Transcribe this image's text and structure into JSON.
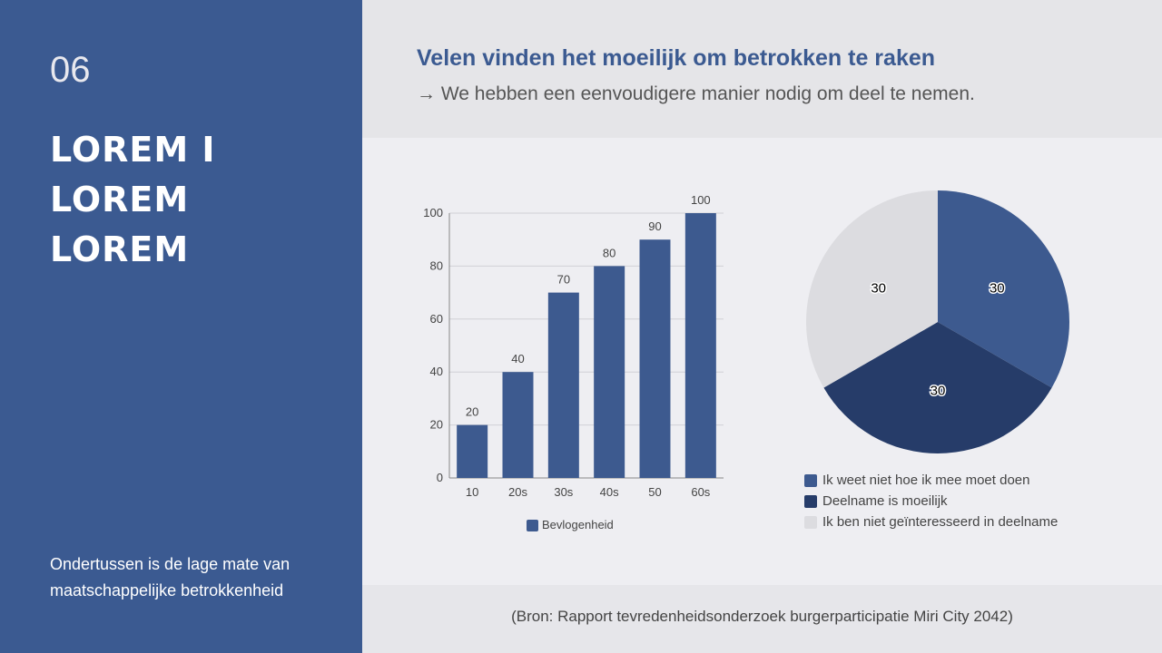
{
  "slide": {
    "number": "06",
    "title": "LOREM I LOREM LOREM",
    "caption": "Ondertussen is de lage mate van maatschappelijke betrokkenheid",
    "heading": "Velen vinden het moeilijk om betrokken te raken",
    "subheading": "→ We hebben een eenvoudigere manier nodig om deel te nemen.",
    "source": "(Bron: Rapport tevredenheidsonderzoek burgerparticipatie Miri City 2042)"
  },
  "chart_data": [
    {
      "type": "bar",
      "categories": [
        "10",
        "20s",
        "30s",
        "40s",
        "50",
        "60s"
      ],
      "series": [
        {
          "name": "Bevlogenheid",
          "color": "#3d5a8f",
          "values": [
            20,
            40,
            70,
            80,
            90,
            100
          ]
        }
      ],
      "ylim": [
        0,
        100
      ],
      "yticks": [
        0,
        20,
        40,
        60,
        80,
        100
      ],
      "grid": true,
      "legend": "bottom"
    },
    {
      "type": "pie",
      "categories": [
        "Ik weet niet hoe ik mee moet doen",
        "Deelname is moeilijk",
        "Ik ben niet geïnteresseerd in deelname"
      ],
      "values": [
        30,
        30,
        30
      ],
      "colors": [
        "#3d5a8f",
        "#263c69",
        "#dcdce0"
      ],
      "legend": "bottom"
    }
  ]
}
